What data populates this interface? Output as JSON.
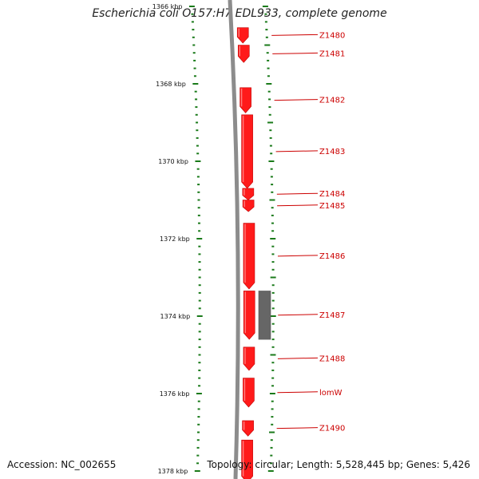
{
  "title": "Escherichia coli O157:H7 EDL933, complete genome",
  "accession": "Accession: NC_002655",
  "summary": "Topology: circular; Length: 5,528,445 bp; Genes: 5,426",
  "colors": {
    "backbone": "#8c8c8c",
    "gene": "#ff1a1a",
    "tick": "#1a7a1a",
    "label": "#cc0000",
    "feature": "#666666"
  },
  "scale": {
    "start_kbp": 1366,
    "end_kbp": 1378,
    "unit": "kbp"
  },
  "ruler_labels": [
    "1366 kbp",
    "1368 kbp",
    "1370 kbp",
    "1372 kbp",
    "1374 kbp",
    "1376 kbp",
    "1378 kbp"
  ],
  "genes": [
    {
      "label": "Z1480",
      "start_kbp": 1366.55,
      "end_kbp": 1366.95
    },
    {
      "label": "Z1481",
      "start_kbp": 1367.0,
      "end_kbp": 1367.45
    },
    {
      "label": "Z1482",
      "start_kbp": 1368.1,
      "end_kbp": 1368.75
    },
    {
      "label": "Z1483",
      "start_kbp": 1368.8,
      "end_kbp": 1370.7
    },
    {
      "label": "Z1484",
      "start_kbp": 1370.7,
      "end_kbp": 1371.0
    },
    {
      "label": "Z1485",
      "start_kbp": 1371.0,
      "end_kbp": 1371.3
    },
    {
      "label": "Z1486",
      "start_kbp": 1371.6,
      "end_kbp": 1373.3
    },
    {
      "label": "Z1487",
      "start_kbp": 1373.35,
      "end_kbp": 1374.6
    },
    {
      "label": "Z1488",
      "start_kbp": 1374.8,
      "end_kbp": 1375.4
    },
    {
      "label": "lomW",
      "start_kbp": 1375.6,
      "end_kbp": 1376.35
    },
    {
      "label": "Z1490",
      "start_kbp": 1376.7,
      "end_kbp": 1377.1
    },
    {
      "label": "",
      "start_kbp": 1377.2,
      "end_kbp": 1378.3
    }
  ],
  "feature_box": {
    "start_kbp": 1373.35,
    "end_kbp": 1374.6
  }
}
